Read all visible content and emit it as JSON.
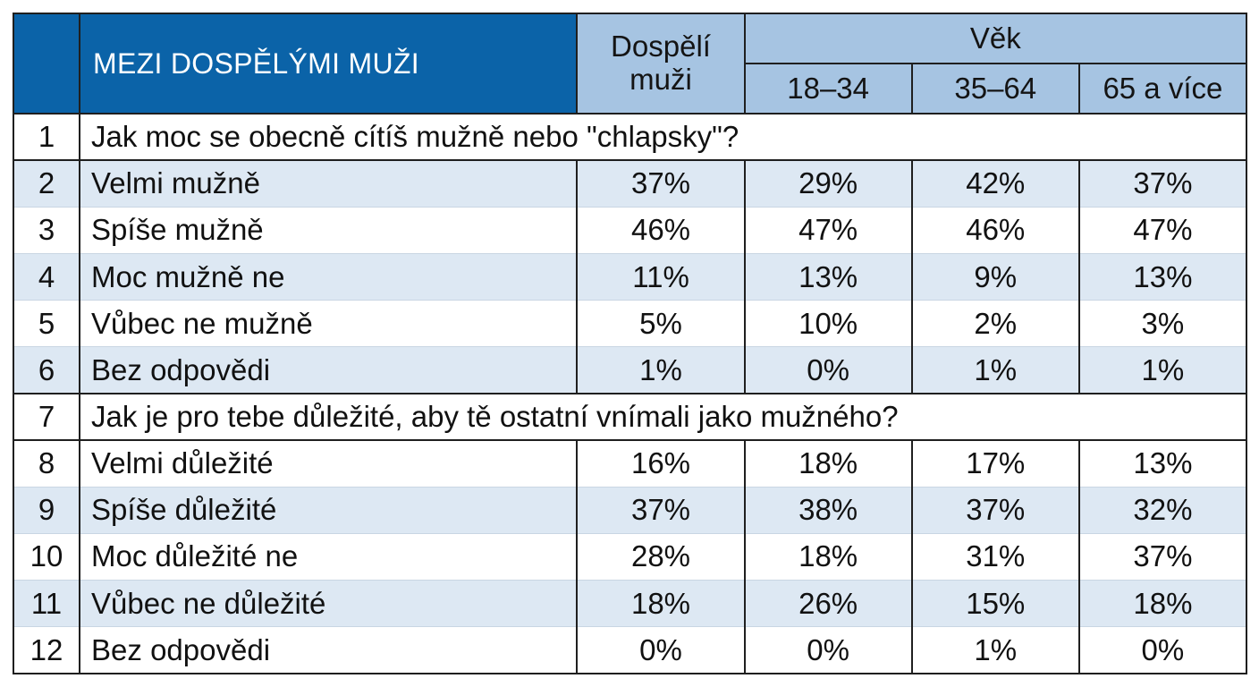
{
  "header": {
    "title": "MEZI DOSPĚLÝMI MUŽI",
    "col_adults": "Dospělí muži",
    "age_group": "Věk",
    "age_bands": [
      "18–34",
      "35–64",
      "65 a více"
    ]
  },
  "rows": [
    {
      "n": "1",
      "question": "Jak moc se obecně cítíš mužně nebo \"chlapsky\"?"
    },
    {
      "n": "2",
      "label": "Velmi mužně",
      "values": [
        "37%",
        "29%",
        "42%",
        "37%"
      ]
    },
    {
      "n": "3",
      "label": "Spíše mužně",
      "values": [
        "46%",
        "47%",
        "46%",
        "47%"
      ]
    },
    {
      "n": "4",
      "label": "Moc mužně ne",
      "values": [
        "11%",
        "13%",
        "9%",
        "13%"
      ]
    },
    {
      "n": "5",
      "label": "Vůbec ne mužně",
      "values": [
        "5%",
        "10%",
        "2%",
        "3%"
      ]
    },
    {
      "n": "6",
      "label": "Bez odpovědi",
      "values": [
        "1%",
        "0%",
        "1%",
        "1%"
      ]
    },
    {
      "n": "7",
      "question": "Jak je pro tebe důležité, aby tě ostatní vnímali jako mužného?"
    },
    {
      "n": "8",
      "label": "Velmi důležité",
      "values": [
        "16%",
        "18%",
        "17%",
        "13%"
      ]
    },
    {
      "n": "9",
      "label": "Spíše důležité",
      "values": [
        "37%",
        "38%",
        "37%",
        "32%"
      ]
    },
    {
      "n": "10",
      "label": "Moc důležité ne",
      "values": [
        "28%",
        "18%",
        "31%",
        "37%"
      ]
    },
    {
      "n": "11",
      "label": "Vůbec ne důležité",
      "values": [
        "18%",
        "26%",
        "15%",
        "18%"
      ]
    },
    {
      "n": "12",
      "label": "Bez odpovědi",
      "values": [
        "0%",
        "0%",
        "1%",
        "0%"
      ]
    }
  ],
  "colors": {
    "header_dark": "#0b63a8",
    "header_light": "#a6c4e2",
    "row_shade": "#dde8f3"
  }
}
